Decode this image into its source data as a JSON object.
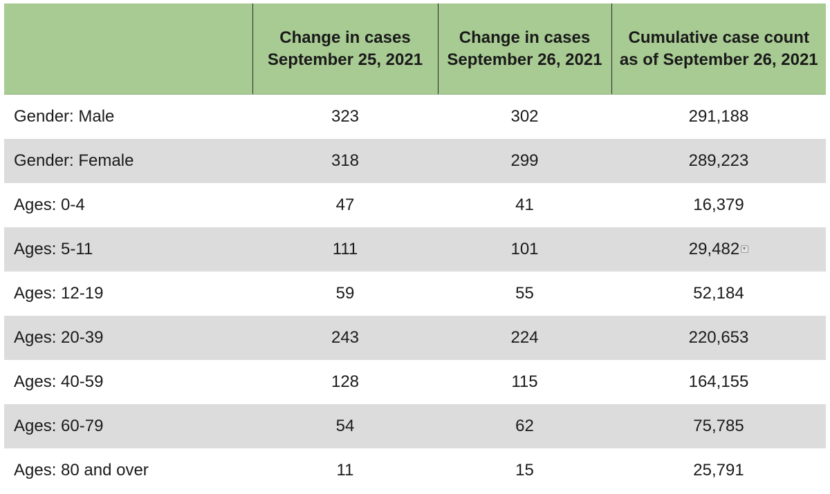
{
  "table": {
    "headers": [
      "",
      "Change in cases September 25, 2021",
      "Change in cases September 26, 2021",
      "Cumulative case count as of September 26, 2021"
    ],
    "rows": [
      [
        "Gender: Male",
        "323",
        "302",
        "291,188"
      ],
      [
        "Gender: Female",
        "318",
        "299",
        "289,223"
      ],
      [
        "Ages: 0-4",
        "47",
        "41",
        "16,379"
      ],
      [
        "Ages: 5-11",
        "111",
        "101",
        "29,482"
      ],
      [
        "Ages: 12-19",
        "59",
        "55",
        "52,184"
      ],
      [
        "Ages: 20-39",
        "243",
        "224",
        "220,653"
      ],
      [
        "Ages: 40-59",
        "128",
        "115",
        "164,155"
      ],
      [
        "Ages: 60-79",
        "54",
        "62",
        "75,785"
      ],
      [
        "Ages: 80 and over",
        "11",
        "15",
        "25,791"
      ]
    ]
  },
  "colors": {
    "header_bg": "#a8cb93",
    "alt_row_bg": "#dcdcdc",
    "row_bg": "#ffffff"
  },
  "icons": {
    "cell_note": "dropdown-marker-icon"
  }
}
